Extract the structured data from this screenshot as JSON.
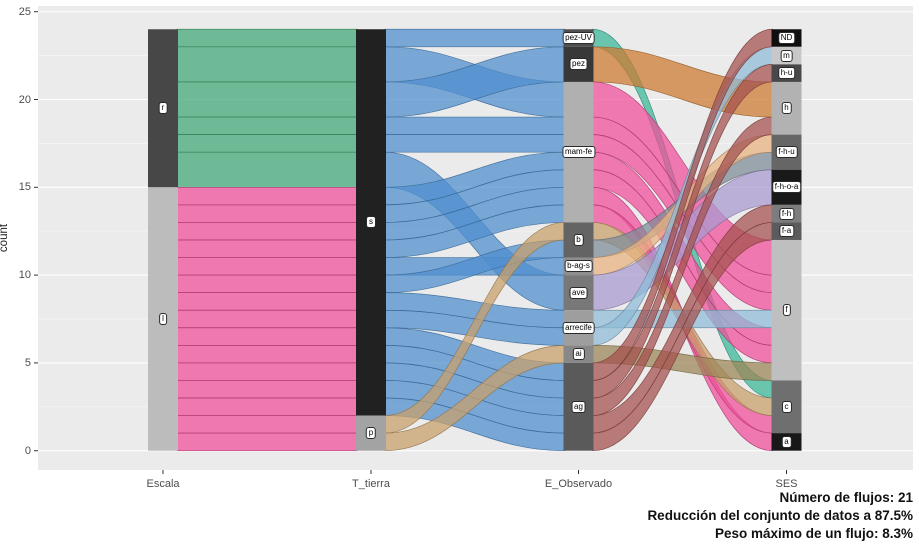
{
  "chart_data": {
    "type": "alluvial",
    "ylabel": "count",
    "ylim": [
      0,
      25
    ],
    "y_ticks": [
      0,
      5,
      10,
      15,
      20,
      25
    ],
    "grid": "on",
    "panel_bg": "#ebebeb",
    "axes": [
      {
        "name": "Escala",
        "strata": [
          {
            "label": "r",
            "y0": 15,
            "y1": 24,
            "color": "#474747"
          },
          {
            "label": "l",
            "y0": 0,
            "y1": 15,
            "color": "#bcbcbc"
          }
        ]
      },
      {
        "name": "T_tierra",
        "strata": [
          {
            "label": "s",
            "y0": 2,
            "y1": 24,
            "color": "#212121"
          },
          {
            "label": "p",
            "y0": 0,
            "y1": 2,
            "color": "#a3a3a3"
          }
        ]
      },
      {
        "name": "E_Observado",
        "strata": [
          {
            "label": "pez-UV",
            "y0": 23,
            "y1": 24,
            "color": "#4f4f4f"
          },
          {
            "label": "pez",
            "y0": 21,
            "y1": 23,
            "color": "#383838"
          },
          {
            "label": "mam-fe",
            "y0": 13,
            "y1": 21,
            "color": "#b0b0b0"
          },
          {
            "label": "b",
            "y0": 11,
            "y1": 13,
            "color": "#646464"
          },
          {
            "label": "b-ag-s",
            "y0": 10,
            "y1": 11,
            "color": "#8e8e8e"
          },
          {
            "label": "ave",
            "y0": 8,
            "y1": 10,
            "color": "#787878"
          },
          {
            "label": "arrecife",
            "y0": 6,
            "y1": 8,
            "color": "#9e9e9e"
          },
          {
            "label": "ai",
            "y0": 5,
            "y1": 6,
            "color": "#888888"
          },
          {
            "label": "ag",
            "y0": 0,
            "y1": 5,
            "color": "#5a5a5a"
          }
        ]
      },
      {
        "name": "SES",
        "strata": [
          {
            "label": "ND",
            "y0": 23,
            "y1": 24,
            "color": "#0f0f0f"
          },
          {
            "label": "m",
            "y0": 22,
            "y1": 23,
            "color": "#c8c8c8"
          },
          {
            "label": "h-u",
            "y0": 21,
            "y1": 22,
            "color": "#484848"
          },
          {
            "label": "h",
            "y0": 18,
            "y1": 21,
            "color": "#b2b2b2"
          },
          {
            "label": "f-h-u",
            "y0": 16,
            "y1": 18,
            "color": "#666666"
          },
          {
            "label": "f-h-o-a",
            "y0": 14,
            "y1": 16,
            "color": "#191919"
          },
          {
            "label": "f-h",
            "y0": 13,
            "y1": 14,
            "color": "#7d7d7d"
          },
          {
            "label": "f-a",
            "y0": 12,
            "y1": 13,
            "color": "#5c5c5c"
          },
          {
            "label": "f",
            "y0": 4,
            "y1": 12,
            "color": "#bfbfbf"
          },
          {
            "label": "c",
            "y0": 1,
            "y1": 4,
            "color": "#6f6f6f"
          },
          {
            "label": "a",
            "y0": 0,
            "y1": 1,
            "color": "#181818"
          }
        ]
      }
    ],
    "flow_colors": {
      "r": "#44a878",
      "l": "#ef4f9a",
      "s": "#4f8fce",
      "p": "#c8a06a",
      "pez-UV": "#3db89a",
      "pez": "#cd7b33",
      "mam-fe": "#ef4f9a",
      "b": "#7f8c99",
      "b-ag-s": "#e8b482",
      "ave": "#a99ad0",
      "arrecife": "#8fbcd8",
      "ai": "#9c8557",
      "ag": "#a5524f"
    },
    "segments": [
      {
        "left_axis": 0,
        "right_axis": 1,
        "ribbons": [
          {
            "l": [
              23,
              24
            ],
            "r": [
              23,
              24
            ],
            "c": "r"
          },
          {
            "l": [
              21,
              23
            ],
            "r": [
              21,
              23
            ],
            "c": "r"
          },
          {
            "l": [
              19,
              21
            ],
            "r": [
              19,
              21
            ],
            "c": "r"
          },
          {
            "l": [
              18,
              19
            ],
            "r": [
              18,
              19
            ],
            "c": "r"
          },
          {
            "l": [
              17,
              18
            ],
            "r": [
              17,
              18
            ],
            "c": "r"
          },
          {
            "l": [
              15,
              17
            ],
            "r": [
              15,
              17
            ],
            "c": "r"
          },
          {
            "l": [
              14,
              15
            ],
            "r": [
              14,
              15
            ],
            "c": "l"
          },
          {
            "l": [
              13,
              14
            ],
            "r": [
              13,
              14
            ],
            "c": "l"
          },
          {
            "l": [
              12,
              13
            ],
            "r": [
              12,
              13
            ],
            "c": "l"
          },
          {
            "l": [
              11,
              12
            ],
            "r": [
              11,
              12
            ],
            "c": "l"
          },
          {
            "l": [
              10,
              11
            ],
            "r": [
              10,
              11
            ],
            "c": "l"
          },
          {
            "l": [
              9,
              10
            ],
            "r": [
              9,
              10
            ],
            "c": "l"
          },
          {
            "l": [
              8,
              9
            ],
            "r": [
              8,
              9
            ],
            "c": "l"
          },
          {
            "l": [
              7,
              8
            ],
            "r": [
              7,
              8
            ],
            "c": "l"
          },
          {
            "l": [
              6,
              7
            ],
            "r": [
              6,
              7
            ],
            "c": "l"
          },
          {
            "l": [
              5,
              6
            ],
            "r": [
              5,
              6
            ],
            "c": "l"
          },
          {
            "l": [
              4,
              5
            ],
            "r": [
              4,
              5
            ],
            "c": "l"
          },
          {
            "l": [
              3,
              4
            ],
            "r": [
              3,
              4
            ],
            "c": "l"
          },
          {
            "l": [
              2,
              3
            ],
            "r": [
              2,
              3
            ],
            "c": "l"
          },
          {
            "l": [
              1,
              2
            ],
            "r": [
              1,
              2
            ],
            "c": "l"
          },
          {
            "l": [
              0,
              1
            ],
            "r": [
              0,
              1
            ],
            "c": "l"
          }
        ]
      },
      {
        "left_axis": 1,
        "right_axis": 2,
        "ribbons": [
          {
            "l": [
              23,
              24
            ],
            "r": [
              23,
              24
            ],
            "c": "s"
          },
          {
            "l": [
              21,
              23
            ],
            "r": [
              19,
              21
            ],
            "c": "s"
          },
          {
            "l": [
              19,
              21
            ],
            "r": [
              21,
              23
            ],
            "c": "s"
          },
          {
            "l": [
              18,
              19
            ],
            "r": [
              18,
              19
            ],
            "c": "s"
          },
          {
            "l": [
              17,
              18
            ],
            "r": [
              17,
              18
            ],
            "c": "s"
          },
          {
            "l": [
              15,
              17
            ],
            "r": [
              8,
              10
            ],
            "c": "s"
          },
          {
            "l": [
              14,
              15
            ],
            "r": [
              16,
              17
            ],
            "c": "s"
          },
          {
            "l": [
              13,
              14
            ],
            "r": [
              15,
              16
            ],
            "c": "s"
          },
          {
            "l": [
              12,
              13
            ],
            "r": [
              14,
              15
            ],
            "c": "s"
          },
          {
            "l": [
              11,
              12
            ],
            "r": [
              13,
              14
            ],
            "c": "s"
          },
          {
            "l": [
              10,
              11
            ],
            "r": [
              10,
              11
            ],
            "c": "s"
          },
          {
            "l": [
              9,
              10
            ],
            "r": [
              11,
              12
            ],
            "c": "s"
          },
          {
            "l": [
              8,
              9
            ],
            "r": [
              7,
              8
            ],
            "c": "s"
          },
          {
            "l": [
              7,
              8
            ],
            "r": [
              6,
              7
            ],
            "c": "s"
          },
          {
            "l": [
              6,
              7
            ],
            "r": [
              4,
              5
            ],
            "c": "s"
          },
          {
            "l": [
              5,
              6
            ],
            "r": [
              3,
              4
            ],
            "c": "s"
          },
          {
            "l": [
              4,
              5
            ],
            "r": [
              2,
              3
            ],
            "c": "s"
          },
          {
            "l": [
              3,
              4
            ],
            "r": [
              1,
              2
            ],
            "c": "s"
          },
          {
            "l": [
              2,
              3
            ],
            "r": [
              0,
              1
            ],
            "c": "s"
          },
          {
            "l": [
              1,
              2
            ],
            "r": [
              12,
              13
            ],
            "c": "p"
          },
          {
            "l": [
              0,
              1
            ],
            "r": [
              5,
              6
            ],
            "c": "p"
          }
        ]
      },
      {
        "left_axis": 2,
        "right_axis": 3,
        "ribbons": [
          {
            "l": [
              23,
              24
            ],
            "r": [
              3,
              4
            ],
            "c": "pez-UV"
          },
          {
            "l": [
              21,
              23
            ],
            "r": [
              19,
              21
            ],
            "c": "pez"
          },
          {
            "l": [
              19,
              21
            ],
            "r": [
              10,
              12
            ],
            "c": "mam-fe"
          },
          {
            "l": [
              18,
              19
            ],
            "r": [
              9,
              10
            ],
            "c": "mam-fe"
          },
          {
            "l": [
              17,
              18
            ],
            "r": [
              8,
              9
            ],
            "c": "mam-fe"
          },
          {
            "l": [
              16,
              17
            ],
            "r": [
              6,
              7
            ],
            "c": "mam-fe"
          },
          {
            "l": [
              15,
              16
            ],
            "r": [
              5,
              6
            ],
            "c": "mam-fe"
          },
          {
            "l": [
              14,
              15
            ],
            "r": [
              0,
              1
            ],
            "c": "mam-fe"
          },
          {
            "l": [
              13,
              14
            ],
            "r": [
              1,
              2
            ],
            "c": "mam-fe"
          },
          {
            "l": [
              12,
              13
            ],
            "r": [
              2,
              3
            ],
            "c": "p"
          },
          {
            "l": [
              11,
              12
            ],
            "r": [
              16,
              17
            ],
            "c": "b"
          },
          {
            "l": [
              10,
              11
            ],
            "r": [
              17,
              18
            ],
            "c": "b-ag-s"
          },
          {
            "l": [
              8,
              10
            ],
            "r": [
              14,
              16
            ],
            "c": "ave"
          },
          {
            "l": [
              7,
              8
            ],
            "r": [
              7,
              8
            ],
            "c": "arrecife"
          },
          {
            "l": [
              6,
              7
            ],
            "r": [
              22,
              23
            ],
            "c": "arrecife"
          },
          {
            "l": [
              5,
              6
            ],
            "r": [
              4,
              5
            ],
            "c": "ai"
          },
          {
            "l": [
              4,
              5
            ],
            "r": [
              23,
              24
            ],
            "c": "ag"
          },
          {
            "l": [
              3,
              4
            ],
            "r": [
              21,
              22
            ],
            "c": "ag"
          },
          {
            "l": [
              2,
              3
            ],
            "r": [
              18,
              19
            ],
            "c": "ag"
          },
          {
            "l": [
              1,
              2
            ],
            "r": [
              13,
              14
            ],
            "c": "ag"
          },
          {
            "l": [
              0,
              1
            ],
            "r": [
              12,
              13
            ],
            "c": "ag"
          }
        ]
      }
    ],
    "caption": {
      "line1": "Número de flujos: 21",
      "line2": "Reducción del conjunto de datos a 87.5%",
      "line3": "Peso máximo de un flujo: 8.3%"
    },
    "stats": {
      "n_flows": 21,
      "data_reduction_pct": 87.5,
      "max_flow_weight_pct": 8.3,
      "total_count": 24
    }
  }
}
